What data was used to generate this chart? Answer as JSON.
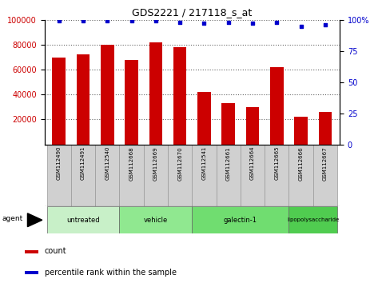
{
  "title": "GDS2221 / 217118_s_at",
  "samples": [
    "GSM112490",
    "GSM112491",
    "GSM112540",
    "GSM112668",
    "GSM112669",
    "GSM112670",
    "GSM112541",
    "GSM112661",
    "GSM112664",
    "GSM112665",
    "GSM112666",
    "GSM112667"
  ],
  "counts": [
    70000,
    72000,
    80000,
    68000,
    82000,
    78000,
    42000,
    33000,
    30000,
    62000,
    22000,
    26000
  ],
  "percentile_ranks": [
    99,
    99,
    99,
    99,
    99,
    98,
    97,
    98,
    97,
    98,
    95,
    96
  ],
  "groups": [
    {
      "label": "untreated",
      "start": 0,
      "end": 3,
      "color": "#c8f0c8"
    },
    {
      "label": "vehicle",
      "start": 3,
      "end": 6,
      "color": "#90e890"
    },
    {
      "label": "galectin-1",
      "start": 6,
      "end": 10,
      "color": "#70dd70"
    },
    {
      "label": "lipopolysaccharide",
      "start": 10,
      "end": 12,
      "color": "#50cc50"
    }
  ],
  "bar_color": "#cc0000",
  "dot_color": "#0000cc",
  "ylim_left": [
    0,
    100000
  ],
  "ylim_right": [
    0,
    100
  ],
  "yticks_left": [
    20000,
    40000,
    60000,
    80000,
    100000
  ],
  "yticks_right": [
    0,
    25,
    50,
    75,
    100
  ],
  "left_tick_color": "#cc0000",
  "right_tick_color": "#0000cc",
  "plot_bg_color": "#ffffff",
  "sample_box_color": "#d0d0d0",
  "sample_box_edge": "#999999"
}
